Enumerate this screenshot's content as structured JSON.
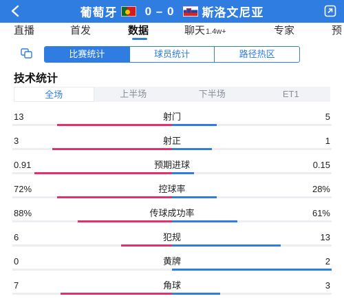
{
  "header": {
    "home_team": "葡萄牙",
    "away_team": "斯洛文尼亚",
    "home_score": "0",
    "away_score": "0",
    "score_sep": "–",
    "back_icon": "chevron-left-icon",
    "share_icon": "share-icon",
    "bg_color": "#2f7de1"
  },
  "nav": {
    "tabs": [
      {
        "label": "直播"
      },
      {
        "label": "首发"
      },
      {
        "label": "数据"
      },
      {
        "label": "聊天",
        "sub": "1.4w+"
      },
      {
        "label": "专家"
      },
      {
        "label": "预"
      }
    ],
    "active_index": 2
  },
  "segments": {
    "icon": "layers-icon",
    "items": [
      "比赛统计",
      "球员统计",
      "路径热区"
    ],
    "active_index": 0
  },
  "section_title": "技术统计",
  "periods": {
    "items": [
      "全场",
      "上半场",
      "下半场",
      "ET1"
    ],
    "active_index": 0
  },
  "colors": {
    "home_bar": "#e0306e",
    "away_bar": "#2f7de1",
    "accent": "#2f7de1"
  },
  "stats": [
    {
      "name": "射门",
      "home": "13",
      "away": "5",
      "home_ratio": 0.72,
      "away_ratio": 0.28
    },
    {
      "name": "射正",
      "home": "3",
      "away": "1",
      "home_ratio": 0.75,
      "away_ratio": 0.25
    },
    {
      "name": "预期进球",
      "home": "0.91",
      "away": "0.15",
      "home_ratio": 0.86,
      "away_ratio": 0.14
    },
    {
      "name": "控球率",
      "home": "72%",
      "away": "28%",
      "home_ratio": 0.72,
      "away_ratio": 0.28
    },
    {
      "name": "传球成功率",
      "home": "88%",
      "away": "61%",
      "home_ratio": 0.59,
      "away_ratio": 0.41
    },
    {
      "name": "犯规",
      "home": "6",
      "away": "13",
      "home_ratio": 0.32,
      "away_ratio": 0.68
    },
    {
      "name": "黄牌",
      "home": "0",
      "away": "2",
      "home_ratio": 0.0,
      "away_ratio": 1.0
    },
    {
      "name": "角球",
      "home": "7",
      "away": "3",
      "home_ratio": 0.7,
      "away_ratio": 0.3
    }
  ]
}
